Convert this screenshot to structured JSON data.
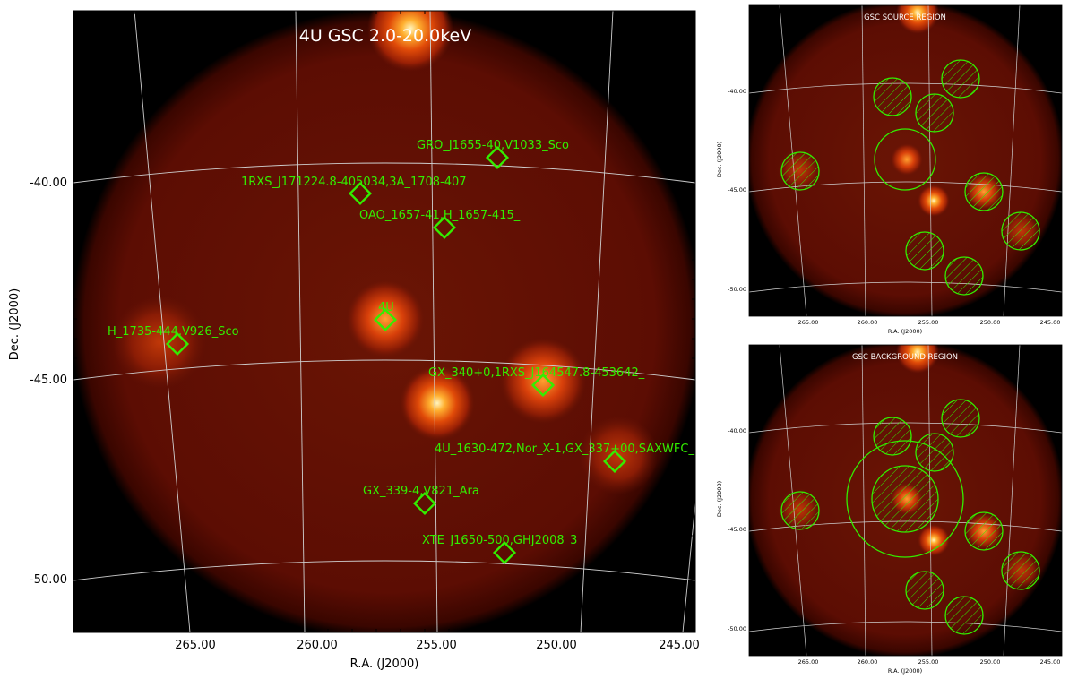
{
  "main_panel": {
    "title": "4U GSC 2.0-20.0keV",
    "xlabel": "R.A. (J2000)",
    "ylabel": "Dec. (J2000)",
    "x_ticks": [
      "265.00",
      "260.00",
      "255.00",
      "250.00",
      "245.00"
    ],
    "y_ticks": [
      "-40.00",
      "-45.00",
      "-50.00"
    ],
    "sources": [
      {
        "label": "GRO_J1655-40,V1033_Sco"
      },
      {
        "label": "1RXS_J171224.8-405034,3A_1708-407"
      },
      {
        "label": "OAO_1657-41,H_1657-415_"
      },
      {
        "label": "4U"
      },
      {
        "label": "H_1735-444,V926_Sco"
      },
      {
        "label": "GX_340+0,1RXS_J164547.8-453642_"
      },
      {
        "label": "4U_1630-472,Nor_X-1,GX_337+00,SAXWFC_"
      },
      {
        "label": "GX_339-4,V821_Ara"
      },
      {
        "label": "XTE_J1650-500,GHJ2008_3"
      }
    ]
  },
  "source_panel": {
    "title": "GSC SOURCE REGION",
    "xlabel": "R.A. (J2000)",
    "ylabel": "Dec. (J2000)",
    "x_ticks": [
      "265.00",
      "260.00",
      "255.00",
      "250.00",
      "245.00"
    ],
    "y_ticks": [
      "-40.00",
      "-45.00",
      "-50.00"
    ]
  },
  "background_panel": {
    "title": "GSC BACKGROUND REGION",
    "xlabel": "R.A. (J2000)",
    "ylabel": "Dec. (J2000)",
    "x_ticks": [
      "265.00",
      "260.00",
      "255.00",
      "250.00",
      "245.00"
    ],
    "y_ticks": [
      "-40.00",
      "-45.00",
      "-50.00"
    ]
  },
  "colors": {
    "background": "#000000",
    "field": "#5a0a02",
    "marker": "#33ee00",
    "grid": "#cccccc"
  }
}
